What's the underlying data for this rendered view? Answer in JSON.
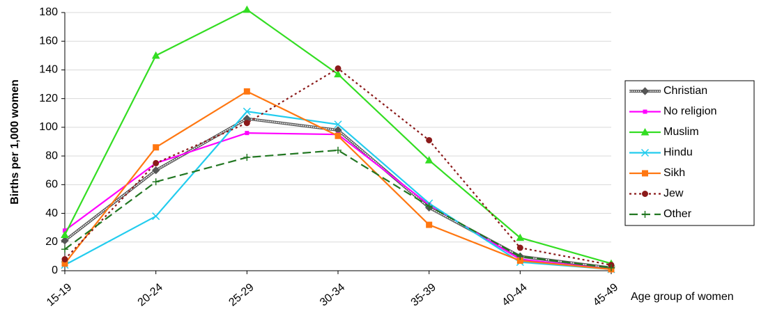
{
  "chart_data": {
    "type": "line",
    "categories": [
      "15-19",
      "20-24",
      "25-29",
      "30-34",
      "35-39",
      "40-44",
      "45-49"
    ],
    "x_label": "Age group of women",
    "y_label": "Births per 1,000 women",
    "ylim": [
      0,
      180
    ],
    "yticks": [
      0,
      20,
      40,
      60,
      80,
      100,
      120,
      140,
      160,
      180
    ],
    "grid": true,
    "legend": "right",
    "series": [
      {
        "name": "Christian",
        "color": "#555555",
        "marker": "diamond",
        "dash": "double",
        "values": [
          21,
          70,
          106,
          98,
          44,
          10,
          2
        ]
      },
      {
        "name": "No religion",
        "color": "#ff00ff",
        "marker": "square-small",
        "dash": "solid",
        "values": [
          28,
          75,
          96,
          95,
          46,
          8,
          1
        ]
      },
      {
        "name": "Muslim",
        "color": "#33dd22",
        "marker": "triangle",
        "dash": "solid",
        "values": [
          25,
          150,
          182,
          137,
          77,
          23,
          5
        ]
      },
      {
        "name": "Hindu",
        "color": "#22ccee",
        "marker": "x",
        "dash": "solid",
        "values": [
          4,
          38,
          111,
          102,
          47,
          6,
          1
        ]
      },
      {
        "name": "Sikh",
        "color": "#ff7711",
        "marker": "square",
        "dash": "solid",
        "values": [
          5,
          86,
          125,
          94,
          32,
          7,
          1
        ]
      },
      {
        "name": "Jew",
        "color": "#8b1a1a",
        "marker": "circle",
        "dash": "dotted",
        "values": [
          8,
          75,
          103,
          141,
          91,
          16,
          4
        ]
      },
      {
        "name": "Other",
        "color": "#227722",
        "marker": "plus",
        "dash": "dashed",
        "values": [
          15,
          62,
          79,
          84,
          45,
          10,
          2
        ]
      }
    ]
  }
}
